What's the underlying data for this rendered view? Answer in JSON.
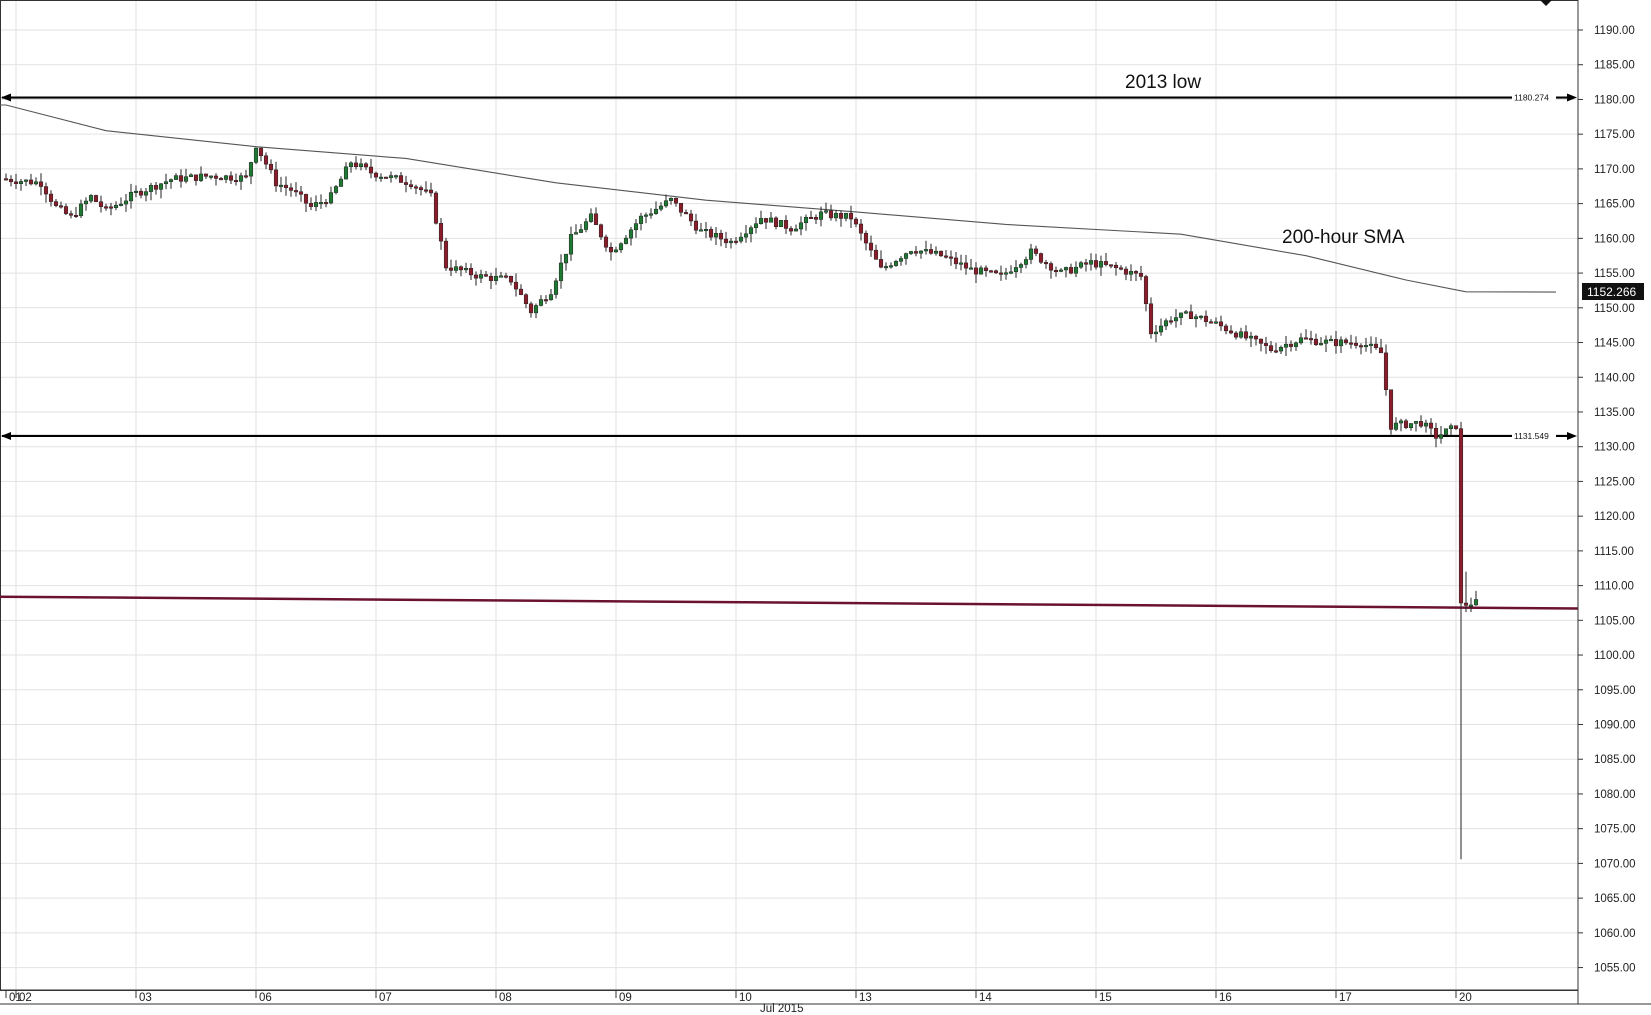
{
  "chart_data": {
    "type": "candlestick",
    "period_label": "Jul 2015",
    "y_ticks": [
      "1190.00",
      "1185.00",
      "1180.00",
      "1175.00",
      "1170.00",
      "1165.00",
      "1160.00",
      "1155.00",
      "1150.00",
      "1145.00",
      "1140.00",
      "1135.00",
      "1130.00",
      "1125.00",
      "1120.00",
      "1115.00",
      "1110.00",
      "1105.00",
      "1100.00",
      "1095.00",
      "1090.00",
      "1085.00",
      "1080.00",
      "1075.00",
      "1070.00",
      "1065.00",
      "1060.00",
      "1055.00"
    ],
    "ylim": [
      1050.5,
      1192.3
    ],
    "x_ticks": [
      {
        "label": "01",
        "hour": 0
      },
      {
        "label": "02",
        "hour": 2
      },
      {
        "label": "03",
        "hour": 26
      },
      {
        "label": "06",
        "hour": 50
      },
      {
        "label": "07",
        "hour": 74
      },
      {
        "label": "08",
        "hour": 98
      },
      {
        "label": "09",
        "hour": 122
      },
      {
        "label": "10",
        "hour": 146
      },
      {
        "label": "13",
        "hour": 170
      },
      {
        "label": "14",
        "hour": 194
      },
      {
        "label": "15",
        "hour": 218
      },
      {
        "label": "16",
        "hour": 242
      },
      {
        "label": "17",
        "hour": 266
      },
      {
        "label": "20",
        "hour": 290
      }
    ],
    "annotations": [
      {
        "text": "2013 low",
        "level": 1180.274,
        "level_label": "1180.274"
      },
      {
        "text": "200-hour SMA"
      }
    ],
    "levels": [
      {
        "value": 1180.274,
        "label": "1180.274",
        "color": "#000000"
      },
      {
        "value": 1131.549,
        "label": "1131.549",
        "color": "#000000"
      }
    ],
    "trendline": {
      "start": 1108.4,
      "end": 1106.7,
      "color": "#6b1232"
    },
    "last_price": {
      "label": "1152.266",
      "value": 1152.266
    },
    "sma": {
      "name": "200-hour SMA",
      "points": [
        {
          "hour": 0,
          "value": 1179.2
        },
        {
          "hour": 20,
          "value": 1175.5
        },
        {
          "hour": 50,
          "value": 1173.2
        },
        {
          "hour": 80,
          "value": 1171.5
        },
        {
          "hour": 110,
          "value": 1168.0
        },
        {
          "hour": 140,
          "value": 1165.5
        },
        {
          "hour": 170,
          "value": 1163.8
        },
        {
          "hour": 200,
          "value": 1162.0
        },
        {
          "hour": 235,
          "value": 1160.6
        },
        {
          "hour": 260,
          "value": 1157.5
        },
        {
          "hour": 280,
          "value": 1154.0
        },
        {
          "hour": 292,
          "value": 1152.3
        },
        {
          "hour": 310,
          "value": 1152.266
        }
      ]
    },
    "price_anchors": [
      {
        "hour": 0,
        "value": 1168.6
      },
      {
        "hour": 8,
        "value": 1168.0
      },
      {
        "hour": 11,
        "value": 1164.5
      },
      {
        "hour": 14,
        "value": 1163.0
      },
      {
        "hour": 18,
        "value": 1166.0
      },
      {
        "hour": 21,
        "value": 1164.0
      },
      {
        "hour": 27,
        "value": 1166.5
      },
      {
        "hour": 34,
        "value": 1168.5
      },
      {
        "hour": 42,
        "value": 1169.0
      },
      {
        "hour": 49,
        "value": 1168.7
      },
      {
        "hour": 51,
        "value": 1173.5
      },
      {
        "hour": 55,
        "value": 1168.0
      },
      {
        "hour": 58,
        "value": 1167.0
      },
      {
        "hour": 62,
        "value": 1164.5
      },
      {
        "hour": 66,
        "value": 1166.0
      },
      {
        "hour": 70,
        "value": 1171.0
      },
      {
        "hour": 74,
        "value": 1169.5
      },
      {
        "hour": 82,
        "value": 1168.0
      },
      {
        "hour": 86,
        "value": 1166.0
      },
      {
        "hour": 89,
        "value": 1156.0
      },
      {
        "hour": 96,
        "value": 1154.5
      },
      {
        "hour": 102,
        "value": 1154.0
      },
      {
        "hour": 106,
        "value": 1149.5
      },
      {
        "hour": 110,
        "value": 1152.5
      },
      {
        "hour": 114,
        "value": 1160.0
      },
      {
        "hour": 118,
        "value": 1163.0
      },
      {
        "hour": 122,
        "value": 1158.0
      },
      {
        "hour": 128,
        "value": 1163.0
      },
      {
        "hour": 134,
        "value": 1165.5
      },
      {
        "hour": 140,
        "value": 1161.0
      },
      {
        "hour": 146,
        "value": 1159.5
      },
      {
        "hour": 152,
        "value": 1163.0
      },
      {
        "hour": 158,
        "value": 1161.5
      },
      {
        "hour": 164,
        "value": 1163.5
      },
      {
        "hour": 170,
        "value": 1163.0
      },
      {
        "hour": 176,
        "value": 1155.5
      },
      {
        "hour": 182,
        "value": 1158.5
      },
      {
        "hour": 188,
        "value": 1157.5
      },
      {
        "hour": 194,
        "value": 1155.5
      },
      {
        "hour": 200,
        "value": 1154.5
      },
      {
        "hour": 206,
        "value": 1158.0
      },
      {
        "hour": 212,
        "value": 1155.0
      },
      {
        "hour": 218,
        "value": 1156.5
      },
      {
        "hour": 224,
        "value": 1155.5
      },
      {
        "hour": 228,
        "value": 1154.5
      },
      {
        "hour": 230,
        "value": 1146.5
      },
      {
        "hour": 234,
        "value": 1148.5
      },
      {
        "hour": 238,
        "value": 1149.0
      },
      {
        "hour": 242,
        "value": 1148.0
      },
      {
        "hour": 248,
        "value": 1146.0
      },
      {
        "hour": 254,
        "value": 1144.0
      },
      {
        "hour": 260,
        "value": 1145.5
      },
      {
        "hour": 266,
        "value": 1145.0
      },
      {
        "hour": 272,
        "value": 1145.0
      },
      {
        "hour": 276,
        "value": 1143.5
      },
      {
        "hour": 278,
        "value": 1133.0
      },
      {
        "hour": 284,
        "value": 1133.5
      },
      {
        "hour": 287,
        "value": 1131.5
      },
      {
        "hour": 290,
        "value": 1132.5
      },
      {
        "hour": 291,
        "value": 1107.0
      },
      {
        "hour": 294,
        "value": 1107.5
      }
    ],
    "notable_extremes": [
      {
        "hour": 291,
        "low": 1070.6
      },
      {
        "hour": 292,
        "high": 1112.0
      }
    ]
  }
}
